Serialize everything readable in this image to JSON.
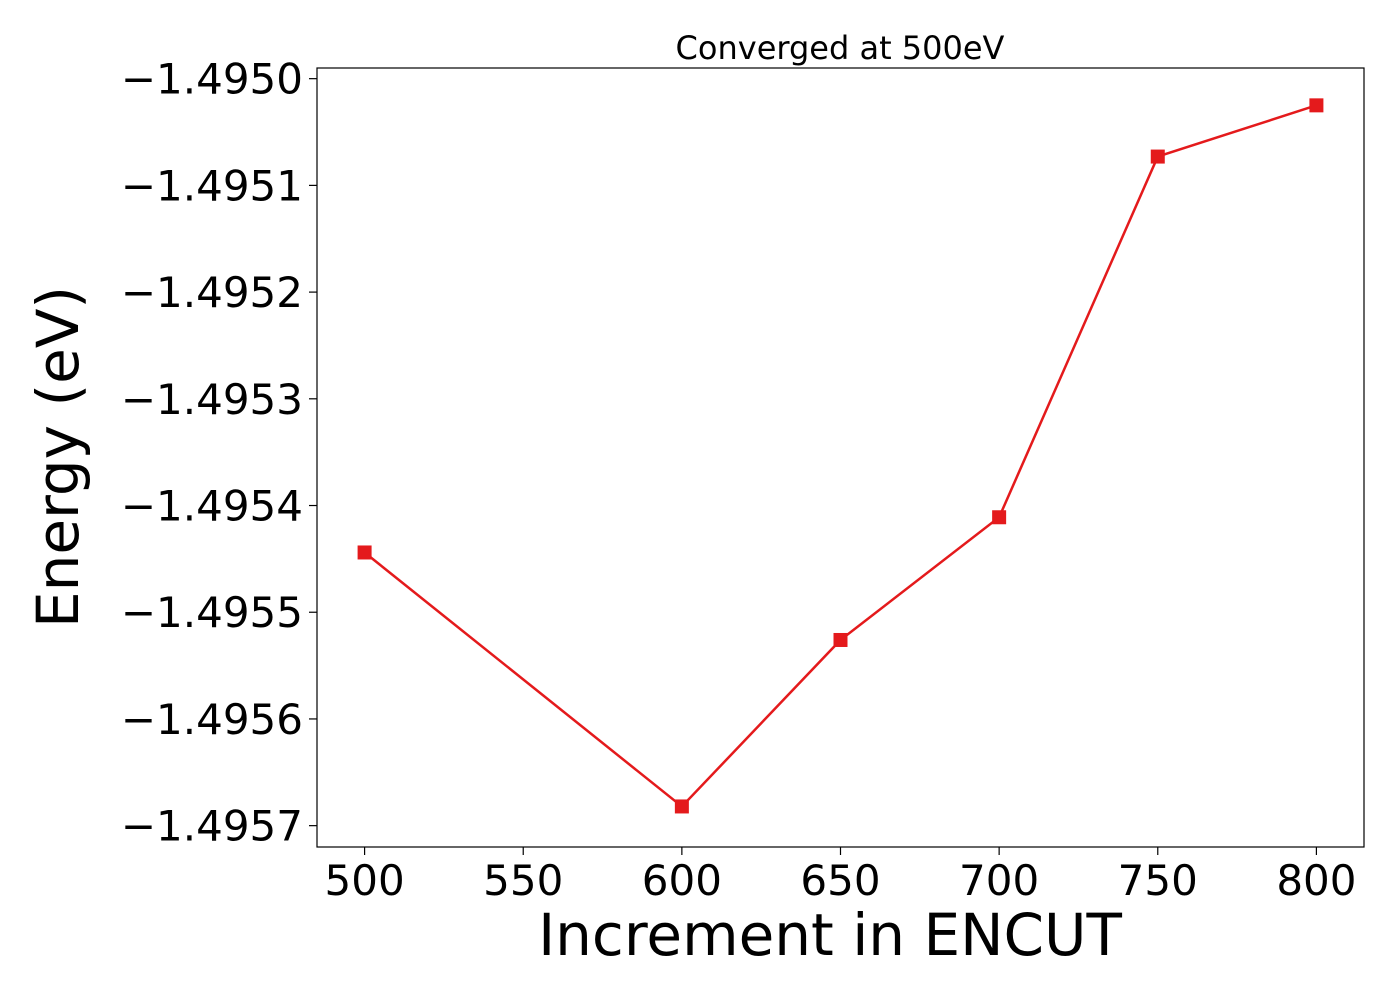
{
  "chart_data": {
    "type": "line",
    "title": "Converged at 500eV",
    "xlabel": "Increment in ENCUT",
    "ylabel": "Energy (eV)",
    "x": [
      500,
      600,
      650,
      700,
      750,
      800
    ],
    "series": [
      {
        "values": [
          -1.495444,
          -1.495682,
          -1.495526,
          -1.495411,
          -1.495073,
          -1.495025
        ],
        "color": "#e41a1c",
        "marker": "square"
      }
    ],
    "xticks": [
      500,
      550,
      600,
      650,
      700,
      750,
      800
    ],
    "xtick_labels": [
      "500",
      "550",
      "600",
      "650",
      "700",
      "750",
      "800"
    ],
    "yticks": [
      -1.495,
      -1.4951,
      -1.4952,
      -1.4953,
      -1.4954,
      -1.4955,
      -1.4956,
      -1.4957
    ],
    "ytick_labels": [
      "−1.4950",
      "−1.4951",
      "−1.4952",
      "−1.4953",
      "−1.4954",
      "−1.4955",
      "−1.4956",
      "−1.4957"
    ],
    "xlim": [
      485,
      815
    ],
    "ylim": [
      -1.49572,
      -1.49499
    ],
    "grid": false,
    "legend": "none"
  }
}
